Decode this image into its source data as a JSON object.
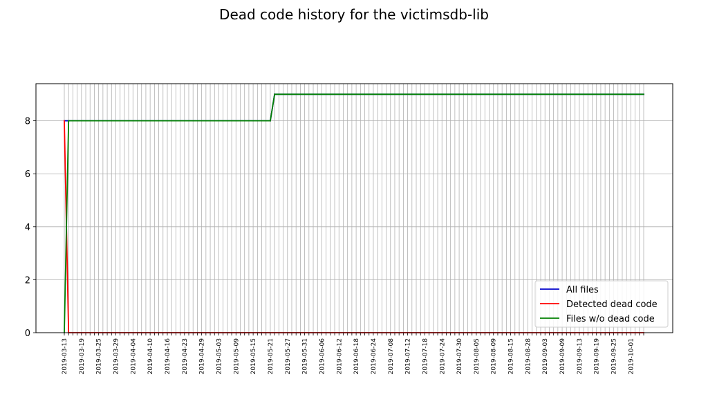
{
  "chart_data": {
    "type": "line",
    "title": "Dead code history for the victimsdb-lib",
    "xlabel": "",
    "ylabel": "",
    "ylim": [
      0,
      9.4
    ],
    "yticks": [
      0,
      2,
      4,
      6,
      8
    ],
    "grid": true,
    "legend_position": "lower-right",
    "x_tick_count": 136,
    "x_tick_labels": [
      "2019-03-13",
      "2019-03-19",
      "2019-03-25",
      "2019-03-29",
      "2019-04-04",
      "2019-04-10",
      "2019-04-16",
      "2019-04-23",
      "2019-04-29",
      "2019-05-03",
      "2019-05-09",
      "2019-05-15",
      "2019-05-21",
      "2019-05-27",
      "2019-05-31",
      "2019-06-06",
      "2019-06-12",
      "2019-06-18",
      "2019-06-24",
      "2019-07-08",
      "2019-07-12",
      "2019-07-18",
      "2019-07-24",
      "2019-07-30",
      "2019-08-05",
      "2019-08-09",
      "2019-08-15",
      "2019-08-28",
      "2019-09-03",
      "2019-09-09",
      "2019-09-13",
      "2019-09-19",
      "2019-09-25",
      "2019-10-01"
    ],
    "x_label_every": 4,
    "series": [
      {
        "name": "All files",
        "color": "#0000cc",
        "segments": [
          {
            "from_index": 0,
            "to_index": 1,
            "from_value": 8,
            "to_value": 8
          },
          {
            "from_index": 1,
            "to_index": 48,
            "from_value": 8,
            "to_value": 8
          },
          {
            "from_index": 48,
            "to_index": 49,
            "from_value": 8,
            "to_value": 9
          },
          {
            "from_index": 49,
            "to_index": 135,
            "from_value": 9,
            "to_value": 9
          }
        ]
      },
      {
        "name": "Detected dead code",
        "color": "#ff0000",
        "segments": [
          {
            "from_index": 0,
            "to_index": 1,
            "from_value": 8,
            "to_value": 0
          },
          {
            "from_index": 1,
            "to_index": 135,
            "from_value": 0,
            "to_value": 0
          }
        ]
      },
      {
        "name": "Files w/o dead code",
        "color": "#008000",
        "segments": [
          {
            "from_index": 0,
            "to_index": 1,
            "from_value": 0,
            "to_value": 8
          },
          {
            "from_index": 1,
            "to_index": 48,
            "from_value": 8,
            "to_value": 8
          },
          {
            "from_index": 48,
            "to_index": 49,
            "from_value": 8,
            "to_value": 9
          },
          {
            "from_index": 49,
            "to_index": 135,
            "from_value": 9,
            "to_value": 9
          }
        ]
      }
    ]
  }
}
